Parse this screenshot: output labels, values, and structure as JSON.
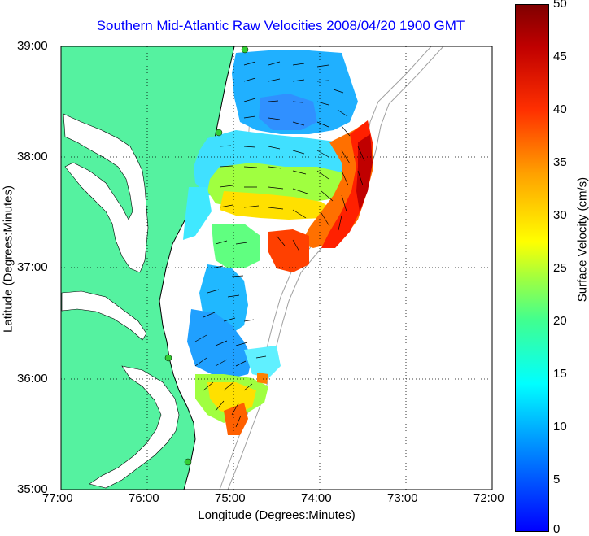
{
  "title": "Southern Mid-Atlantic Raw Velocities 2008/04/20 1900 GMT",
  "xlabel": "Longitude (Degrees:Minutes)",
  "ylabel": "Latitude (Degrees:Minutes)",
  "xticks": [
    "77:00",
    "76:00",
    "75:00",
    "74:00",
    "73:00",
    "72:00"
  ],
  "yticks": [
    "39:00",
    "38:00",
    "37:00",
    "36:00",
    "35:00"
  ],
  "colorbar": {
    "label": "Surface Velocity (cm/s)",
    "ticks": [
      "0",
      "5",
      "10",
      "15",
      "20",
      "25",
      "30",
      "35",
      "40",
      "45",
      "50"
    ],
    "min": 0,
    "max": 50
  },
  "colors": {
    "land": "#55f2a0",
    "title": "#0000ff",
    "coast": "#000000",
    "bathy": "#a0a0a0",
    "station": "#33cc33"
  },
  "map_extent": {
    "lon": [
      -77,
      -72
    ],
    "lat": [
      35,
      39
    ]
  }
}
